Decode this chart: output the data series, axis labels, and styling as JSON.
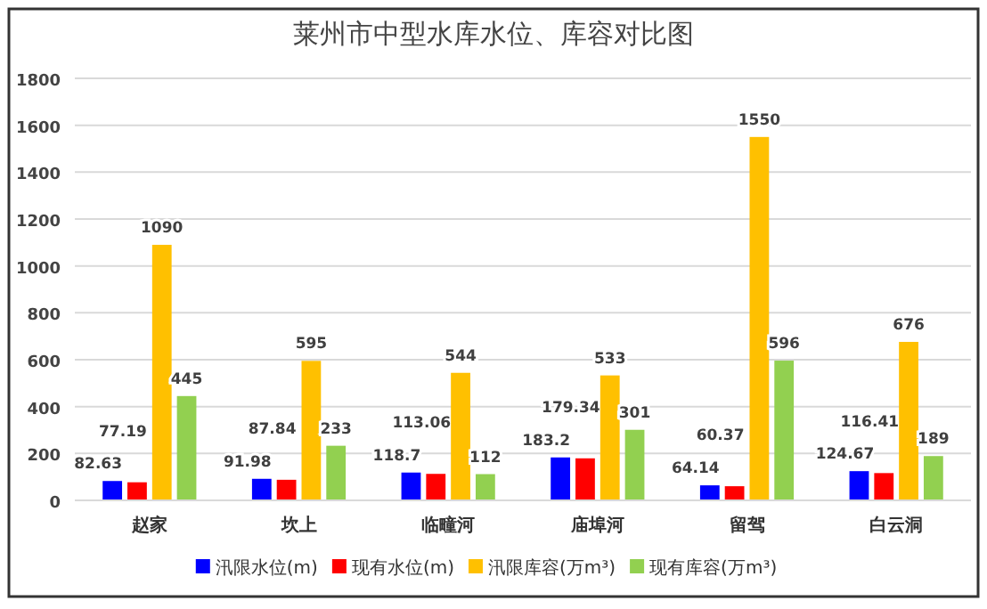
{
  "chart_data": {
    "type": "bar",
    "title": "莱州市中型水库水位、库容对比图",
    "categories": [
      "赵家",
      "坎上",
      "临疃河",
      "庙埠河",
      "留驾",
      "白云洞"
    ],
    "series": [
      {
        "name": "汛限水位(m)",
        "color": "#0000ff",
        "values": [
          82.63,
          91.98,
          118.7,
          183.2,
          64.14,
          124.67
        ]
      },
      {
        "name": "现有水位(m)",
        "color": "#ff0000",
        "values": [
          77.19,
          87.84,
          113.06,
          179.34,
          60.37,
          116.41
        ]
      },
      {
        "name": "汛限库容(万m³)",
        "color": "#ffc000",
        "values": [
          1090,
          595,
          544,
          533,
          1550,
          676
        ]
      },
      {
        "name": "现有库容(万m³)",
        "color": "#92d050",
        "values": [
          445,
          233,
          112,
          301,
          596,
          189
        ]
      }
    ],
    "ylim": [
      0,
      1800
    ],
    "yticks": [
      0,
      200,
      400,
      600,
      800,
      1000,
      1200,
      1400,
      1600,
      1800
    ],
    "grid": "y",
    "legend": "bottom",
    "data_labels": true
  }
}
